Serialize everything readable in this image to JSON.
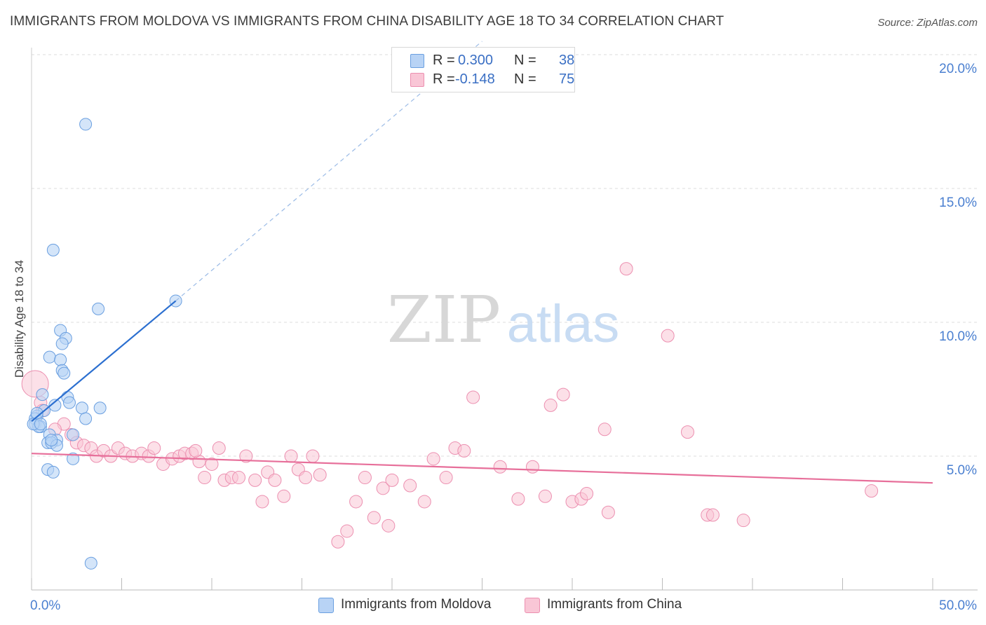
{
  "header": {
    "title": "IMMIGRANTS FROM MOLDOVA VS IMMIGRANTS FROM CHINA DISABILITY AGE 18 TO 34 CORRELATION CHART",
    "source": "Source: ZipAtlas.com"
  },
  "watermark": {
    "zip": "ZIP",
    "atlas": "atlas"
  },
  "legend": {
    "rows": [
      {
        "r_label": "R =",
        "r_value": "0.300",
        "n_label": "N =",
        "n_value": "38"
      },
      {
        "r_label": "R =",
        "r_value": "-0.148",
        "n_label": "N =",
        "n_value": "75"
      }
    ]
  },
  "bottom_legend": [
    "Immigrants from Moldova",
    "Immigrants from China"
  ],
  "colors": {
    "moldova_fill": "#b8d3f5",
    "moldova_stroke": "#6a9fe0",
    "moldova_line": "#2b6fd0",
    "china_fill": "#f9c6d6",
    "china_stroke": "#ec8fb0",
    "china_line": "#e76f9a",
    "axis_text": "#4a7fd0",
    "grid": "#dddddd"
  },
  "chart_data": {
    "type": "scatter",
    "title": "IMMIGRANTS FROM MOLDOVA VS IMMIGRANTS FROM CHINA DISABILITY AGE 18 TO 34 CORRELATION CHART",
    "xlabel": "",
    "ylabel": "Disability Age 18 to 34",
    "xlim": [
      0,
      50
    ],
    "ylim": [
      0,
      20
    ],
    "x_tick_labels": [
      "0.0%",
      "50.0%"
    ],
    "y_ticks": [
      5,
      10,
      15,
      20
    ],
    "y_tick_labels": [
      "5.0%",
      "10.0%",
      "15.0%",
      "20.0%"
    ],
    "grid": "horizontal dashed",
    "legend_placement": "top-center",
    "series": [
      {
        "name": "Immigrants from Moldova",
        "r": 0.3,
        "n": 38,
        "trend": {
          "x": [
            0.0,
            8.0
          ],
          "y": [
            6.3,
            10.8
          ],
          "extended": {
            "x": [
              8.0,
              25.0
            ],
            "y": [
              10.8,
              20.5
            ]
          }
        },
        "points": [
          [
            3.0,
            17.4
          ],
          [
            1.2,
            12.7
          ],
          [
            3.7,
            10.5
          ],
          [
            8.0,
            10.8
          ],
          [
            1.6,
            9.7
          ],
          [
            1.9,
            9.4
          ],
          [
            1.7,
            9.2
          ],
          [
            1.0,
            8.7
          ],
          [
            1.6,
            8.6
          ],
          [
            1.7,
            8.2
          ],
          [
            1.8,
            8.1
          ],
          [
            0.6,
            7.3
          ],
          [
            2.0,
            7.2
          ],
          [
            2.1,
            7.0
          ],
          [
            1.3,
            6.9
          ],
          [
            2.8,
            6.8
          ],
          [
            3.8,
            6.8
          ],
          [
            0.7,
            6.7
          ],
          [
            0.3,
            6.5
          ],
          [
            0.2,
            6.4
          ],
          [
            0.2,
            6.2
          ],
          [
            0.5,
            6.1
          ],
          [
            3.0,
            6.4
          ],
          [
            0.4,
            6.1
          ],
          [
            2.3,
            5.8
          ],
          [
            1.0,
            5.8
          ],
          [
            1.4,
            5.6
          ],
          [
            0.9,
            5.5
          ],
          [
            1.1,
            5.5
          ],
          [
            1.4,
            5.4
          ],
          [
            1.1,
            5.6
          ],
          [
            0.9,
            4.5
          ],
          [
            1.2,
            4.4
          ],
          [
            2.3,
            4.9
          ],
          [
            0.1,
            6.2
          ],
          [
            0.3,
            6.6
          ],
          [
            0.5,
            6.2
          ],
          [
            3.3,
            1.0
          ]
        ]
      },
      {
        "name": "Immigrants from China",
        "r": -0.148,
        "n": 75,
        "trend": {
          "x": [
            0.0,
            50.0
          ],
          "y": [
            5.1,
            4.0
          ]
        },
        "points": [
          [
            0.2,
            7.7
          ],
          [
            0.5,
            7.0
          ],
          [
            0.6,
            6.7
          ],
          [
            1.8,
            6.2
          ],
          [
            1.3,
            6.0
          ],
          [
            2.2,
            5.8
          ],
          [
            2.5,
            5.5
          ],
          [
            2.9,
            5.4
          ],
          [
            3.3,
            5.3
          ],
          [
            3.6,
            5.0
          ],
          [
            4.0,
            5.2
          ],
          [
            4.4,
            5.0
          ],
          [
            4.8,
            5.3
          ],
          [
            5.2,
            5.1
          ],
          [
            5.6,
            5.0
          ],
          [
            6.1,
            5.1
          ],
          [
            6.5,
            5.0
          ],
          [
            6.8,
            5.3
          ],
          [
            7.3,
            4.7
          ],
          [
            7.8,
            4.9
          ],
          [
            8.2,
            5.0
          ],
          [
            8.5,
            5.1
          ],
          [
            8.9,
            5.1
          ],
          [
            9.3,
            4.8
          ],
          [
            9.6,
            4.2
          ],
          [
            10.0,
            4.7
          ],
          [
            10.4,
            5.3
          ],
          [
            10.7,
            4.1
          ],
          [
            11.1,
            4.2
          ],
          [
            11.5,
            4.2
          ],
          [
            11.9,
            5.0
          ],
          [
            12.4,
            4.1
          ],
          [
            12.8,
            3.3
          ],
          [
            13.1,
            4.4
          ],
          [
            13.5,
            4.1
          ],
          [
            14.0,
            3.5
          ],
          [
            14.4,
            5.0
          ],
          [
            14.8,
            4.5
          ],
          [
            15.2,
            4.2
          ],
          [
            15.6,
            5.0
          ],
          [
            16.0,
            4.3
          ],
          [
            17.0,
            1.8
          ],
          [
            17.5,
            2.2
          ],
          [
            18.0,
            3.3
          ],
          [
            18.5,
            4.2
          ],
          [
            19.0,
            2.7
          ],
          [
            19.5,
            3.8
          ],
          [
            19.8,
            2.4
          ],
          [
            20.0,
            4.1
          ],
          [
            21.0,
            3.9
          ],
          [
            21.8,
            3.3
          ],
          [
            22.3,
            4.9
          ],
          [
            23.0,
            4.2
          ],
          [
            23.5,
            5.3
          ],
          [
            24.0,
            5.2
          ],
          [
            24.5,
            7.2
          ],
          [
            26.0,
            4.6
          ],
          [
            27.0,
            3.4
          ],
          [
            27.8,
            4.6
          ],
          [
            28.5,
            3.5
          ],
          [
            28.8,
            6.9
          ],
          [
            29.5,
            7.3
          ],
          [
            30.0,
            3.3
          ],
          [
            30.5,
            3.4
          ],
          [
            30.8,
            3.6
          ],
          [
            31.8,
            6.0
          ],
          [
            32.0,
            2.9
          ],
          [
            33.0,
            12.0
          ],
          [
            35.3,
            9.5
          ],
          [
            36.4,
            5.9
          ],
          [
            37.5,
            2.8
          ],
          [
            37.8,
            2.8
          ],
          [
            39.5,
            2.6
          ],
          [
            46.6,
            3.7
          ],
          [
            9.1,
            5.2
          ]
        ]
      }
    ]
  }
}
